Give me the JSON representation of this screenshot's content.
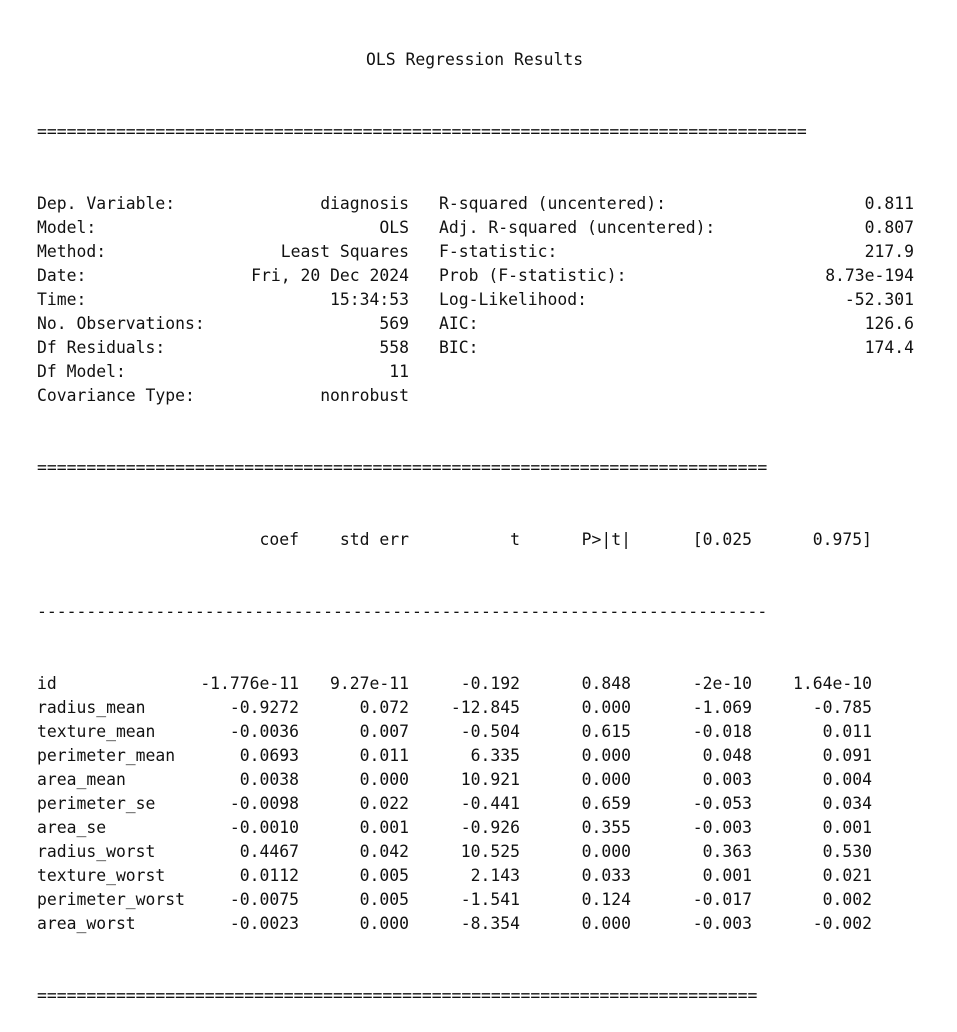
{
  "title": "OLS Regression Results",
  "rules": {
    "top": "==============================================================================",
    "mid": "==========================================================================",
    "dash": "--------------------------------------------------------------------------",
    "bottom": "========================================================================="
  },
  "summary_left": [
    {
      "label": "Dep. Variable:",
      "value": "diagnosis"
    },
    {
      "label": "Model:",
      "value": "OLS"
    },
    {
      "label": "Method:",
      "value": "Least Squares"
    },
    {
      "label": "Date:",
      "value": "Fri, 20 Dec 2024"
    },
    {
      "label": "Time:",
      "value": "15:34:53"
    },
    {
      "label": "No. Observations:",
      "value": "569"
    },
    {
      "label": "Df Residuals:",
      "value": "558"
    },
    {
      "label": "Df Model:",
      "value": "11"
    },
    {
      "label": "Covariance Type:",
      "value": "nonrobust"
    }
  ],
  "summary_right": [
    {
      "label": "R-squared (uncentered):",
      "value": "0.811"
    },
    {
      "label": "Adj. R-squared (uncentered):",
      "value": "0.807"
    },
    {
      "label": "F-statistic:",
      "value": "217.9"
    },
    {
      "label": "Prob (F-statistic):",
      "value": "8.73e-194"
    },
    {
      "label": "Log-Likelihood:",
      "value": "-52.301"
    },
    {
      "label": "AIC:",
      "value": "126.6"
    },
    {
      "label": "BIC:",
      "value": "174.4"
    },
    {
      "label": "",
      "value": ""
    },
    {
      "label": "",
      "value": ""
    }
  ],
  "table": {
    "headers": [
      "",
      "coef",
      "std err",
      "t",
      "P>|t|",
      "[0.025",
      "0.975]"
    ],
    "rows": [
      [
        "id",
        "-1.776e-11",
        "9.27e-11",
        "-0.192",
        "0.848",
        "-2e-10",
        "1.64e-10"
      ],
      [
        "radius_mean",
        "-0.9272",
        "0.072",
        "-12.845",
        "0.000",
        "-1.069",
        "-0.785"
      ],
      [
        "texture_mean",
        "-0.0036",
        "0.007",
        "-0.504",
        "0.615",
        "-0.018",
        "0.011"
      ],
      [
        "perimeter_mean",
        "0.0693",
        "0.011",
        "6.335",
        "0.000",
        "0.048",
        "0.091"
      ],
      [
        "area_mean",
        "0.0038",
        "0.000",
        "10.921",
        "0.000",
        "0.003",
        "0.004"
      ],
      [
        "perimeter_se",
        "-0.0098",
        "0.022",
        "-0.441",
        "0.659",
        "-0.053",
        "0.034"
      ],
      [
        "area_se",
        "-0.0010",
        "0.001",
        "-0.926",
        "0.355",
        "-0.003",
        "0.001"
      ],
      [
        "radius_worst",
        "0.4467",
        "0.042",
        "10.525",
        "0.000",
        "0.363",
        "0.530"
      ],
      [
        "texture_worst",
        "0.0112",
        "0.005",
        "2.143",
        "0.033",
        "0.001",
        "0.021"
      ],
      [
        "perimeter_worst",
        "-0.0075",
        "0.005",
        "-1.541",
        "0.124",
        "-0.017",
        "0.002"
      ],
      [
        "area_worst",
        "-0.0023",
        "0.000",
        "-8.354",
        "0.000",
        "-0.003",
        "-0.002"
      ]
    ]
  }
}
